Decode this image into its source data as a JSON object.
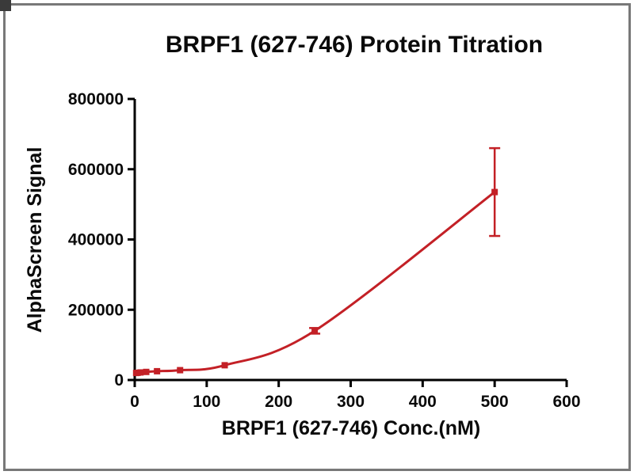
{
  "frame": {
    "background": "#ffffff",
    "border_color": "#787878"
  },
  "chart_data": {
    "type": "line",
    "title": "BRPF1 (627-746) Protein Titration",
    "xlabel": "BRPF1 (627-746) Conc.(nM)",
    "ylabel": "AlphaScreen Signal",
    "xlim": [
      0,
      600
    ],
    "ylim": [
      0,
      800000
    ],
    "x_ticks": [
      0,
      100,
      200,
      300,
      400,
      500,
      600
    ],
    "y_ticks": [
      0,
      200000,
      400000,
      600000,
      800000
    ],
    "grid": false,
    "legend": "none",
    "axis_color": "#000000",
    "series": [
      {
        "name": "BRPF1 (627-746)",
        "color": "#c32026",
        "marker": "square",
        "x": [
          2,
          4,
          8,
          16,
          31,
          63,
          125,
          250,
          500
        ],
        "y": [
          20000,
          20500,
          21500,
          23000,
          25000,
          28000,
          42000,
          140000,
          535000
        ],
        "y_err": [
          3000,
          2000,
          2000,
          2000,
          2000,
          2500,
          4000,
          8000,
          125000
        ]
      }
    ]
  }
}
